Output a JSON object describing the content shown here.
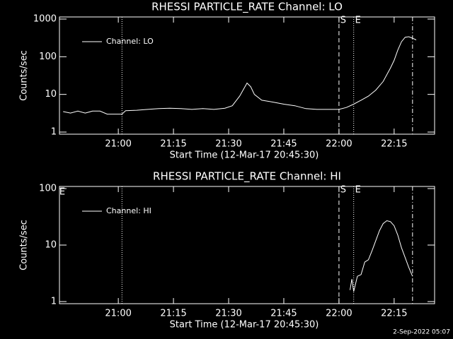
{
  "chart_data": [
    {
      "type": "line",
      "title": "RHESSI PARTICLE_RATE Channel: LO",
      "x_label": "Start Time (12-Mar-17 20:45:30)",
      "y_label": "Counts/sec",
      "log_scale": true,
      "legend": "top-left",
      "xlim": [
        "20:44",
        "22:26"
      ],
      "ylim": [
        1,
        1000
      ],
      "xticks": [
        "21:00",
        "21:15",
        "21:30",
        "21:45",
        "22:00",
        "22:15"
      ],
      "yticks": [
        1,
        10,
        100,
        1000
      ],
      "markers": [
        {
          "label": "S",
          "x": "22:00",
          "style": "dashed"
        },
        {
          "label": "E",
          "x": "22:04",
          "style": "dotted"
        }
      ],
      "event_lines": [
        {
          "x": "21:01",
          "style": "dotted"
        },
        {
          "x": "22:20",
          "style": "dashdot"
        }
      ],
      "x": [
        "20:45",
        "20:47",
        "20:49",
        "20:51",
        "20:53",
        "20:55",
        "20:57",
        "20:59",
        "21:01",
        "21:02",
        "21:05",
        "21:08",
        "21:11",
        "21:14",
        "21:17",
        "21:20",
        "21:23",
        "21:26",
        "21:29",
        "21:31",
        "21:33",
        "21:35",
        "21:36",
        "21:37",
        "21:39",
        "21:41",
        "21:43",
        "21:45",
        "21:48",
        "21:51",
        "21:54",
        "21:57",
        "22:00",
        "22:02",
        "22:04",
        "22:06",
        "22:08",
        "22:10",
        "22:12",
        "22:14",
        "22:15",
        "22:16",
        "22:17",
        "22:18",
        "22:19",
        "22:20",
        "22:21"
      ],
      "series": [
        {
          "name": "Channel: LO",
          "color": "#ffffff",
          "values": [
            3.5,
            3.2,
            3.6,
            3.2,
            3.6,
            3.6,
            3.0,
            3.0,
            3.0,
            3.7,
            3.8,
            4.0,
            4.2,
            4.3,
            4.2,
            4.0,
            4.2,
            4.0,
            4.3,
            5,
            9,
            20,
            16,
            10,
            7,
            6.5,
            6,
            5.5,
            5,
            4.2,
            4,
            4,
            4,
            4.5,
            5.5,
            7,
            9,
            13,
            22,
            50,
            80,
            150,
            250,
            330,
            340,
            310,
            280
          ]
        }
      ]
    },
    {
      "type": "line",
      "title": "RHESSI PARTICLE_RATE Channel: HI",
      "x_label": "Start Time (12-Mar-17 20:45:30)",
      "y_label": "Counts/sec",
      "log_scale": true,
      "legend": "top-left",
      "xlim": [
        "20:44",
        "22:26"
      ],
      "ylim": [
        1,
        100
      ],
      "xticks": [
        "21:00",
        "21:15",
        "21:30",
        "21:45",
        "22:00",
        "22:15"
      ],
      "yticks": [
        1,
        10,
        100
      ],
      "corner_label": "E",
      "markers": [
        {
          "label": "S",
          "x": "22:00",
          "style": "dashed"
        },
        {
          "label": "E",
          "x": "22:04",
          "style": "dotted"
        }
      ],
      "event_lines": [
        {
          "x": "21:01",
          "style": "dotted"
        },
        {
          "x": "22:20",
          "style": "dashdot"
        }
      ],
      "x": [
        "22:03",
        "22:03:30",
        "22:04",
        "22:05",
        "22:06",
        "22:07",
        "22:08",
        "22:09",
        "22:10",
        "22:11",
        "22:12",
        "22:13",
        "22:14",
        "22:15",
        "22:16",
        "22:17",
        "22:18",
        "22:19",
        "22:20"
      ],
      "series": [
        {
          "name": "Channel: HI",
          "color": "#ffffff",
          "values": [
            1.6,
            2.5,
            1.5,
            2.8,
            3,
            5,
            5.5,
            8,
            12,
            18,
            24,
            27,
            26,
            22,
            15,
            9,
            6,
            4,
            2.8
          ]
        }
      ]
    }
  ],
  "footer": "2-Sep-2022 05:07"
}
